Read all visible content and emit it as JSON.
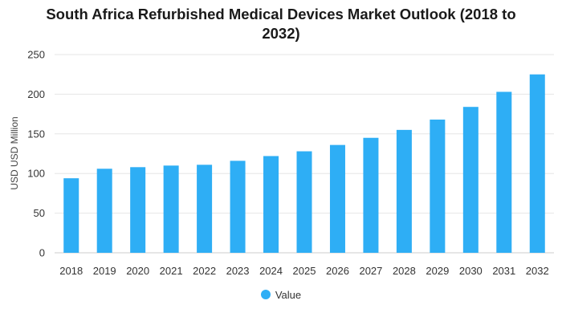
{
  "chart_data": {
    "type": "bar",
    "title_line1": "South Africa Refurbished Medical Devices Market Outlook (2018 to",
    "title_line2": "2032)",
    "xlabel": "",
    "ylabel": "USD USD Million",
    "categories": [
      "2018",
      "2019",
      "2020",
      "2021",
      "2022",
      "2023",
      "2024",
      "2025",
      "2026",
      "2027",
      "2028",
      "2029",
      "2030",
      "2031",
      "2032"
    ],
    "series": [
      {
        "name": "Value",
        "values": [
          94,
          106,
          108,
          110,
          111,
          116,
          122,
          128,
          136,
          145,
          155,
          168,
          184,
          203,
          225
        ]
      }
    ],
    "ylim": [
      0,
      250
    ],
    "yticks": [
      0,
      50,
      100,
      150,
      200,
      250
    ],
    "grid": true,
    "legend_position": "bottom",
    "bar_color": "#2EAEF5"
  }
}
